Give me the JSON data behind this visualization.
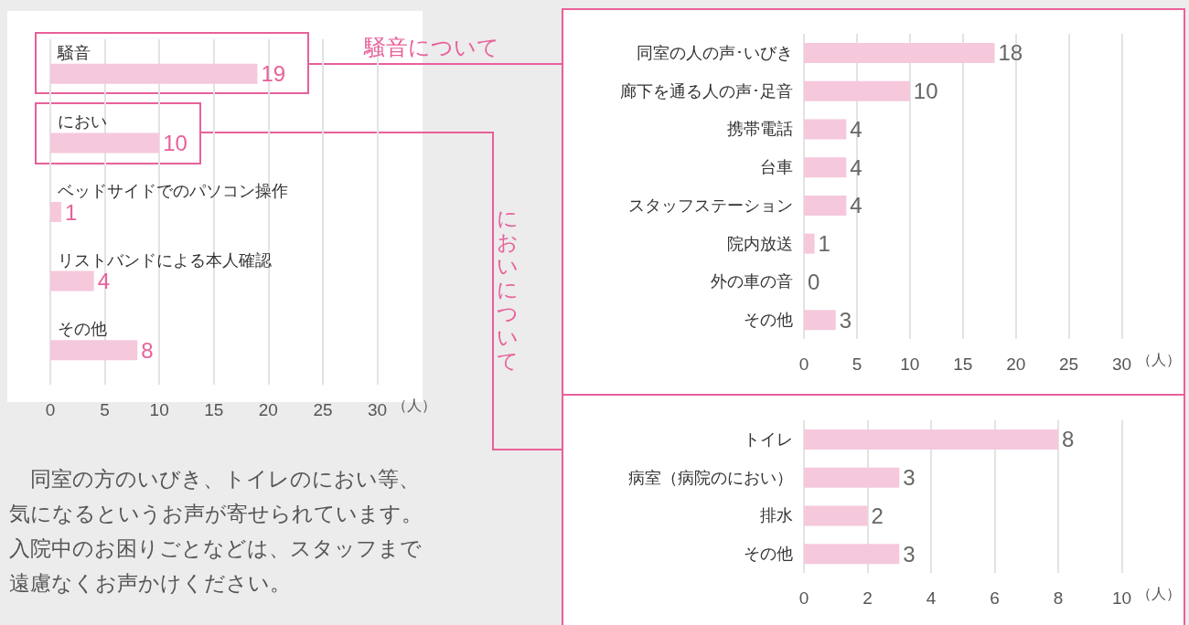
{
  "chart_data": [
    {
      "type": "bar",
      "orientation": "horizontal",
      "categories": [
        "騒音",
        "におい",
        "ベッドサイドでのパソコン操作",
        "リストバンドによる本人確認",
        "その他"
      ],
      "values": [
        19,
        10,
        1,
        4,
        8
      ],
      "color": "#f5c8dc",
      "data_labels": true,
      "xlim": [
        0,
        30
      ],
      "xticks": [
        0,
        5,
        10,
        15,
        20,
        25,
        30
      ],
      "xlabel": "（人）",
      "grid": "x",
      "annotations": [
        "騒音について",
        "においについて",
        "同室の方のいびき、トイレのにおい等、気になるというお声が寄せられています。入院中のお困りごとなどは、スタッフまで遠慮なくお声かけください。"
      ]
    },
    {
      "type": "bar",
      "orientation": "horizontal",
      "categories": [
        "同室の人の声･いびき",
        "廊下を通る人の声･足音",
        "携帯電話",
        "台車",
        "スタッフステーション",
        "院内放送",
        "外の車の音",
        "その他"
      ],
      "values": [
        18,
        10,
        4,
        4,
        4,
        1,
        0,
        3
      ],
      "color": "#f5c8dc",
      "data_labels": true,
      "xlim": [
        0,
        30
      ],
      "xticks": [
        0,
        5,
        10,
        15,
        20,
        25,
        30
      ],
      "xlabel": "（人）",
      "grid": "x"
    },
    {
      "type": "bar",
      "orientation": "horizontal",
      "categories": [
        "トイレ",
        "病室（病院のにおい）",
        "排水",
        "その他"
      ],
      "values": [
        8,
        3,
        2,
        3
      ],
      "color": "#f5c8dc",
      "data_labels": true,
      "xlim": [
        0,
        10
      ],
      "xticks": [
        0,
        2,
        4,
        6,
        8,
        10
      ],
      "xlabel": "（人）",
      "grid": "x"
    }
  ]
}
